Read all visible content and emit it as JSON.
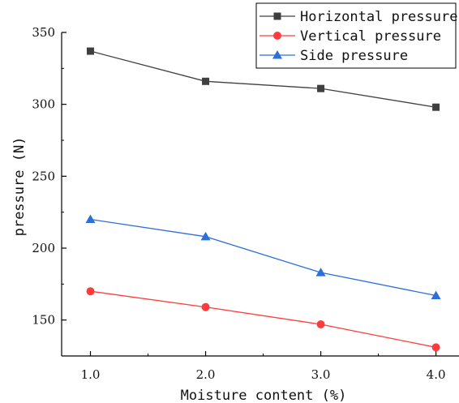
{
  "chart_data": {
    "type": "line",
    "xlabel": "Moisture content (%)",
    "ylabel": "pressure (N)",
    "x_ticks": [
      "1.0",
      "2.0",
      "3.0",
      "4.0"
    ],
    "y_ticks": [
      "150",
      "200",
      "250",
      "300",
      "350"
    ],
    "xlim": [
      0.75,
      4.2
    ],
    "ylim": [
      125,
      350
    ],
    "grid": false,
    "legend_position": "top-right",
    "x": [
      1.0,
      2.0,
      3.0,
      4.0
    ],
    "series": [
      {
        "name": "Horizontal pressure",
        "values": [
          337,
          316,
          311,
          298
        ],
        "color": "#3f3f3f",
        "marker": "square"
      },
      {
        "name": "Vertical pressure",
        "values": [
          170,
          159,
          147,
          131
        ],
        "color": "#ff3b3b",
        "marker": "circle"
      },
      {
        "name": "Side pressure",
        "values": [
          220,
          208,
          183,
          167
        ],
        "color": "#2a6fdb",
        "marker": "triangle"
      }
    ]
  }
}
